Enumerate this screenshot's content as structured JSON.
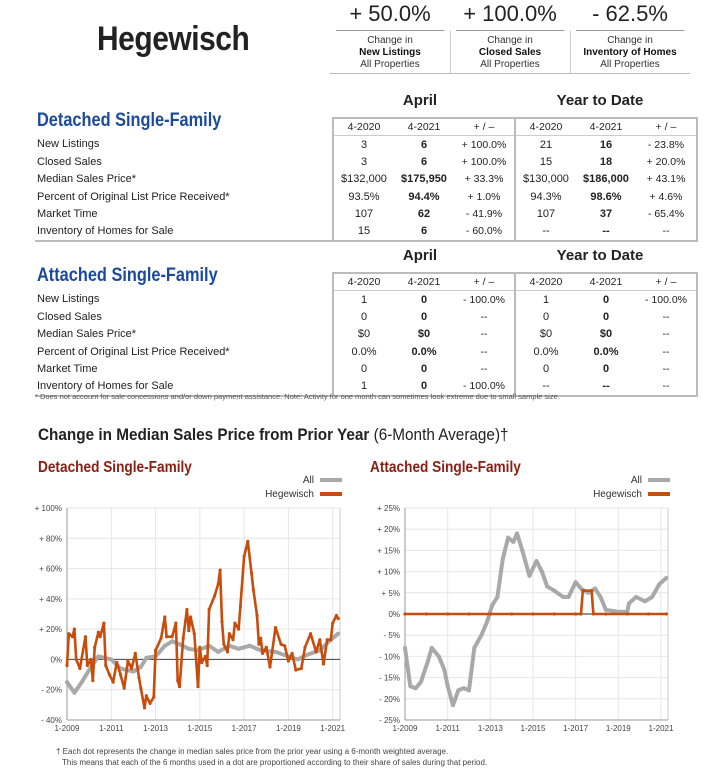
{
  "header": {
    "town": "Hegewisch",
    "kpis": [
      {
        "value": "+ 50.0%",
        "line1": "Change in",
        "line2": "New Listings",
        "line3": "All Properties"
      },
      {
        "value": "+ 100.0%",
        "line1": "Change in",
        "line2": "Closed Sales",
        "line3": "All Properties"
      },
      {
        "value": "- 62.5%",
        "line1": "Change in",
        "line2": "Inventory of Homes",
        "line3": "All Properties"
      }
    ]
  },
  "tables": [
    {
      "title": "Detached Single-Family",
      "period1": "April",
      "period2": "Year to Date",
      "columns": [
        "4-2020",
        "4-2021",
        "+ / –",
        "4-2020",
        "4-2021",
        "+ / –"
      ],
      "rows": [
        {
          "label": "New Listings",
          "cells": [
            "3",
            "6",
            "+ 100.0%",
            "21",
            "16",
            "- 23.8%"
          ]
        },
        {
          "label": "Closed Sales",
          "cells": [
            "3",
            "6",
            "+ 100.0%",
            "15",
            "18",
            "+ 20.0%"
          ]
        },
        {
          "label": "Median Sales Price*",
          "cells": [
            "$132,000",
            "$175,950",
            "+ 33.3%",
            "$130,000",
            "$186,000",
            "+ 43.1%"
          ]
        },
        {
          "label": "Percent of Original List Price Received*",
          "cells": [
            "93.5%",
            "94.4%",
            "+ 1.0%",
            "94.3%",
            "98.6%",
            "+ 4.6%"
          ]
        },
        {
          "label": "Market Time",
          "cells": [
            "107",
            "62",
            "- 41.9%",
            "107",
            "37",
            "- 65.4%"
          ]
        },
        {
          "label": "Inventory of Homes for Sale",
          "cells": [
            "15",
            "6",
            "- 60.0%",
            "--",
            "--",
            "--"
          ]
        }
      ]
    },
    {
      "title": "Attached Single-Family",
      "period1": "April",
      "period2": "Year to Date",
      "columns": [
        "4-2020",
        "4-2021",
        "+ / –",
        "4-2020",
        "4-2021",
        "+ / –"
      ],
      "rows": [
        {
          "label": "New Listings",
          "cells": [
            "1",
            "0",
            "- 100.0%",
            "1",
            "0",
            "- 100.0%"
          ]
        },
        {
          "label": "Closed Sales",
          "cells": [
            "0",
            "0",
            "--",
            "0",
            "0",
            "--"
          ]
        },
        {
          "label": "Median Sales Price*",
          "cells": [
            "$0",
            "$0",
            "--",
            "$0",
            "$0",
            "--"
          ]
        },
        {
          "label": "Percent of Original List Price Received*",
          "cells": [
            "0.0%",
            "0.0%",
            "--",
            "0.0%",
            "0.0%",
            "--"
          ]
        },
        {
          "label": "Market Time",
          "cells": [
            "0",
            "0",
            "--",
            "0",
            "0",
            "--"
          ]
        },
        {
          "label": "Inventory of Homes for Sale",
          "cells": [
            "1",
            "0",
            "- 100.0%",
            "--",
            "--",
            "--"
          ]
        }
      ]
    }
  ],
  "footnote": "* Does not account for sale concessions and/or down payment assistance. Note: Activity for one month can sometimes look extreme due to small sample size.",
  "chart_section": {
    "title": "Change in Median Sales Price from Prior Year",
    "title_suffix": "(6-Month Average)†"
  },
  "bottom_note": {
    "line1": "† Each dot represents the change in median sales price from the prior year using a 6-month weighted average.",
    "line2": "This means that each of the 6 months used in a dot are proportioned according to their share of sales during that period."
  },
  "colors": {
    "all": "#a9a9a9",
    "town": "#c84c0c",
    "title_blue": "#1b4a9c",
    "chart_title": "#8b1e12"
  },
  "chart_data": [
    {
      "type": "line",
      "title": "Detached Single-Family",
      "ylim": [
        -40,
        100
      ],
      "yticks": [
        100,
        80,
        60,
        40,
        20,
        0,
        -20,
        -40
      ],
      "ytick_labels": [
        "+ 100%",
        "+ 80%",
        "+ 60%",
        "+ 40%",
        "+ 20%",
        "0%",
        "- 20%",
        "- 40%"
      ],
      "xlim": [
        "2009-01",
        "2021-04"
      ],
      "xticks": [
        "2009-01",
        "2011-01",
        "2013-01",
        "2015-01",
        "2017-01",
        "2019-01",
        "2021-01"
      ],
      "xtick_labels": [
        "1-2009",
        "1-2011",
        "1-2013",
        "1-2015",
        "1-2017",
        "1-2019",
        "1-2021"
      ],
      "grid": true,
      "legend": "top-right",
      "series": [
        {
          "name": "All",
          "color": "#a9a9a9",
          "points": [
            [
              "2009-01",
              -15
            ],
            [
              "2009-05",
              -22
            ],
            [
              "2009-09",
              -15
            ],
            [
              "2010-02",
              -5
            ],
            [
              "2010-06",
              2
            ],
            [
              "2011-01",
              0
            ],
            [
              "2011-06",
              -6
            ],
            [
              "2012-01",
              -8
            ],
            [
              "2012-05",
              -5
            ],
            [
              "2012-08",
              1
            ],
            [
              "2013-01",
              2
            ],
            [
              "2013-06",
              9
            ],
            [
              "2013-10",
              12
            ],
            [
              "2014-02",
              10
            ],
            [
              "2014-07",
              7
            ],
            [
              "2014-12",
              6
            ],
            [
              "2015-06",
              9
            ],
            [
              "2015-11",
              5
            ],
            [
              "2016-05",
              9
            ],
            [
              "2016-10",
              7
            ],
            [
              "2017-04",
              9
            ],
            [
              "2017-10",
              6
            ],
            [
              "2018-06",
              5
            ],
            [
              "2019-01",
              2
            ],
            [
              "2019-06",
              0
            ],
            [
              "2019-11",
              3
            ],
            [
              "2020-06",
              6
            ],
            [
              "2020-12",
              13
            ],
            [
              "2021-04",
              17
            ]
          ]
        },
        {
          "name": "Hegewisch",
          "color": "#c84c0c",
          "points": [
            [
              "2009-01",
              -4
            ],
            [
              "2009-02",
              17
            ],
            [
              "2009-04",
              15
            ],
            [
              "2009-05",
              20
            ],
            [
              "2009-06",
              0
            ],
            [
              "2009-08",
              -6
            ],
            [
              "2009-11",
              15
            ],
            [
              "2009-12",
              -4
            ],
            [
              "2010-02",
              0
            ],
            [
              "2010-03",
              -14
            ],
            [
              "2010-04",
              8
            ],
            [
              "2010-06",
              18
            ],
            [
              "2010-07",
              15
            ],
            [
              "2010-09",
              24
            ],
            [
              "2010-10",
              -4
            ],
            [
              "2010-12",
              -10
            ],
            [
              "2011-02",
              -15
            ],
            [
              "2011-04",
              -2
            ],
            [
              "2011-06",
              -10
            ],
            [
              "2011-08",
              -19
            ],
            [
              "2011-10",
              -1
            ],
            [
              "2011-12",
              -6
            ],
            [
              "2012-02",
              4
            ],
            [
              "2012-04",
              -12
            ],
            [
              "2012-05",
              -19
            ],
            [
              "2012-07",
              -32
            ],
            [
              "2012-08",
              -24
            ],
            [
              "2012-10",
              -29
            ],
            [
              "2012-12",
              -25
            ],
            [
              "2013-01",
              6
            ],
            [
              "2013-04",
              14
            ],
            [
              "2013-06",
              28
            ],
            [
              "2013-07",
              15
            ],
            [
              "2013-10",
              15
            ],
            [
              "2013-12",
              24
            ],
            [
              "2014-01",
              -14
            ],
            [
              "2014-02",
              -18
            ],
            [
              "2014-04",
              14
            ],
            [
              "2014-06",
              33
            ],
            [
              "2014-07",
              19
            ],
            [
              "2014-08",
              28
            ],
            [
              "2014-10",
              17
            ],
            [
              "2014-12",
              -18
            ],
            [
              "2015-01",
              8
            ],
            [
              "2015-02",
              -2
            ],
            [
              "2015-04",
              2
            ],
            [
              "2015-05",
              -4
            ],
            [
              "2015-06",
              33
            ],
            [
              "2015-09",
              42
            ],
            [
              "2015-11",
              50
            ],
            [
              "2015-12",
              59
            ],
            [
              "2016-01",
              25
            ],
            [
              "2016-02",
              10
            ],
            [
              "2016-04",
              5
            ],
            [
              "2016-05",
              17
            ],
            [
              "2016-07",
              13
            ],
            [
              "2016-08",
              24
            ],
            [
              "2016-10",
              20
            ],
            [
              "2016-11",
              35
            ],
            [
              "2017-01",
              68
            ],
            [
              "2017-03",
              78
            ],
            [
              "2017-05",
              57
            ],
            [
              "2017-06",
              46
            ],
            [
              "2017-08",
              29
            ],
            [
              "2017-09",
              10
            ],
            [
              "2017-10",
              14
            ],
            [
              "2017-11",
              4
            ],
            [
              "2018-01",
              8
            ],
            [
              "2018-03",
              -5
            ],
            [
              "2018-06",
              21
            ],
            [
              "2018-09",
              10
            ],
            [
              "2018-11",
              9
            ],
            [
              "2019-01",
              -1
            ],
            [
              "2019-03",
              4
            ],
            [
              "2019-05",
              -7
            ],
            [
              "2019-08",
              -6
            ],
            [
              "2019-10",
              8
            ],
            [
              "2020-01",
              17
            ],
            [
              "2020-04",
              5
            ],
            [
              "2020-06",
              13
            ],
            [
              "2020-08",
              -3
            ],
            [
              "2020-10",
              13
            ],
            [
              "2020-12",
              13
            ],
            [
              "2021-01",
              24
            ],
            [
              "2021-03",
              29
            ],
            [
              "2021-04",
              27
            ]
          ]
        }
      ]
    },
    {
      "type": "line",
      "title": "Attached Single-Family",
      "ylim": [
        -25,
        25
      ],
      "yticks": [
        25,
        20,
        15,
        10,
        5,
        0,
        -5,
        -10,
        -15,
        -20,
        -25
      ],
      "ytick_labels": [
        "+ 25%",
        "+ 20%",
        "+ 15%",
        "+ 10%",
        "+ 5%",
        "0%",
        "- 5%",
        "- 10%",
        "- 15%",
        "- 20%",
        "- 25%"
      ],
      "xlim": [
        "2009-01",
        "2021-04"
      ],
      "xticks": [
        "2009-01",
        "2011-01",
        "2013-01",
        "2015-01",
        "2017-01",
        "2019-01",
        "2021-01"
      ],
      "xtick_labels": [
        "1-2009",
        "1-2011",
        "1-2013",
        "1-2015",
        "1-2017",
        "1-2019",
        "1-2021"
      ],
      "grid": true,
      "legend": "top-right",
      "series": [
        {
          "name": "All",
          "color": "#a9a9a9",
          "points": [
            [
              "2009-01",
              -8
            ],
            [
              "2009-04",
              -17
            ],
            [
              "2009-07",
              -17.5
            ],
            [
              "2009-10",
              -16
            ],
            [
              "2010-02",
              -11
            ],
            [
              "2010-04",
              -8
            ],
            [
              "2010-08",
              -10
            ],
            [
              "2010-11",
              -13
            ],
            [
              "2011-01",
              -17
            ],
            [
              "2011-04",
              -21.5
            ],
            [
              "2011-07",
              -18
            ],
            [
              "2011-10",
              -17.5
            ],
            [
              "2012-01",
              -18
            ],
            [
              "2012-04",
              -8
            ],
            [
              "2012-08",
              -5
            ],
            [
              "2012-11",
              -2
            ],
            [
              "2013-02",
              2
            ],
            [
              "2013-05",
              4
            ],
            [
              "2013-08",
              13
            ],
            [
              "2013-11",
              18
            ],
            [
              "2014-02",
              17
            ],
            [
              "2014-04",
              19
            ],
            [
              "2014-07",
              15
            ],
            [
              "2014-11",
              9
            ],
            [
              "2015-03",
              12.5
            ],
            [
              "2015-06",
              10
            ],
            [
              "2015-09",
              6.5
            ],
            [
              "2016-01",
              5.5
            ],
            [
              "2016-06",
              4
            ],
            [
              "2016-09",
              4
            ],
            [
              "2017-01",
              7.5
            ],
            [
              "2017-04",
              6
            ],
            [
              "2017-08",
              5
            ],
            [
              "2017-12",
              6
            ],
            [
              "2018-03",
              4
            ],
            [
              "2018-06",
              1
            ],
            [
              "2019-01",
              0.5
            ],
            [
              "2019-06",
              0.5
            ],
            [
              "2019-07",
              2.5
            ],
            [
              "2019-11",
              4
            ],
            [
              "2020-04",
              3
            ],
            [
              "2020-08",
              4
            ],
            [
              "2020-12",
              7
            ],
            [
              "2021-04",
              8.5
            ]
          ]
        },
        {
          "name": "Hegewisch",
          "color": "#c84c0c",
          "points": [
            [
              "2009-01",
              0
            ],
            [
              "2010-01",
              0
            ],
            [
              "2011-01",
              0
            ],
            [
              "2012-01",
              0
            ],
            [
              "2013-01",
              0
            ],
            [
              "2014-01",
              0
            ],
            [
              "2015-01",
              0
            ],
            [
              "2016-01",
              0
            ],
            [
              "2017-01",
              0
            ],
            [
              "2017-04",
              0
            ],
            [
              "2017-05",
              5.5
            ],
            [
              "2017-10",
              5.5
            ],
            [
              "2017-11",
              0
            ],
            [
              "2018-06",
              0
            ],
            [
              "2019-06",
              0
            ],
            [
              "2020-06",
              0
            ],
            [
              "2021-04",
              0
            ]
          ]
        }
      ]
    }
  ]
}
